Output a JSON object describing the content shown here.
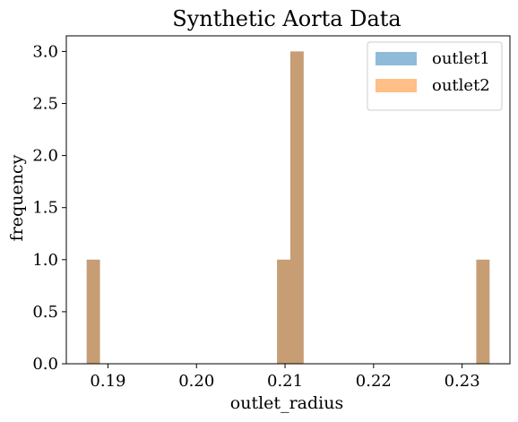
{
  "chart_data": {
    "type": "bar",
    "title": "Synthetic Aorta Data",
    "xlabel": "outlet_radius",
    "ylabel": "frequency",
    "xlim": [
      0.1853,
      0.2354
    ],
    "ylim": [
      0,
      3.15
    ],
    "xticks": [
      "0.19",
      "0.20",
      "0.21",
      "0.22",
      "0.23"
    ],
    "yticks": [
      "0.0",
      "0.5",
      "1.0",
      "1.5",
      "2.0",
      "2.5",
      "3.0"
    ],
    "legend_position": "top-right",
    "series": [
      {
        "name": "outlet1",
        "color": "#1f77b4",
        "bins": [
          {
            "x0": 0.1876,
            "x1": 0.1891,
            "count": 1
          },
          {
            "x0": 0.2091,
            "x1": 0.2106,
            "count": 1
          },
          {
            "x0": 0.2106,
            "x1": 0.2121,
            "count": 3
          },
          {
            "x0": 0.2316,
            "x1": 0.2331,
            "count": 1
          }
        ]
      },
      {
        "name": "outlet2",
        "color": "#ff7f0e",
        "bins": [
          {
            "x0": 0.1876,
            "x1": 0.1891,
            "count": 1
          },
          {
            "x0": 0.2091,
            "x1": 0.2106,
            "count": 1
          },
          {
            "x0": 0.2106,
            "x1": 0.2121,
            "count": 3
          },
          {
            "x0": 0.2316,
            "x1": 0.2331,
            "count": 1
          }
        ]
      }
    ]
  }
}
